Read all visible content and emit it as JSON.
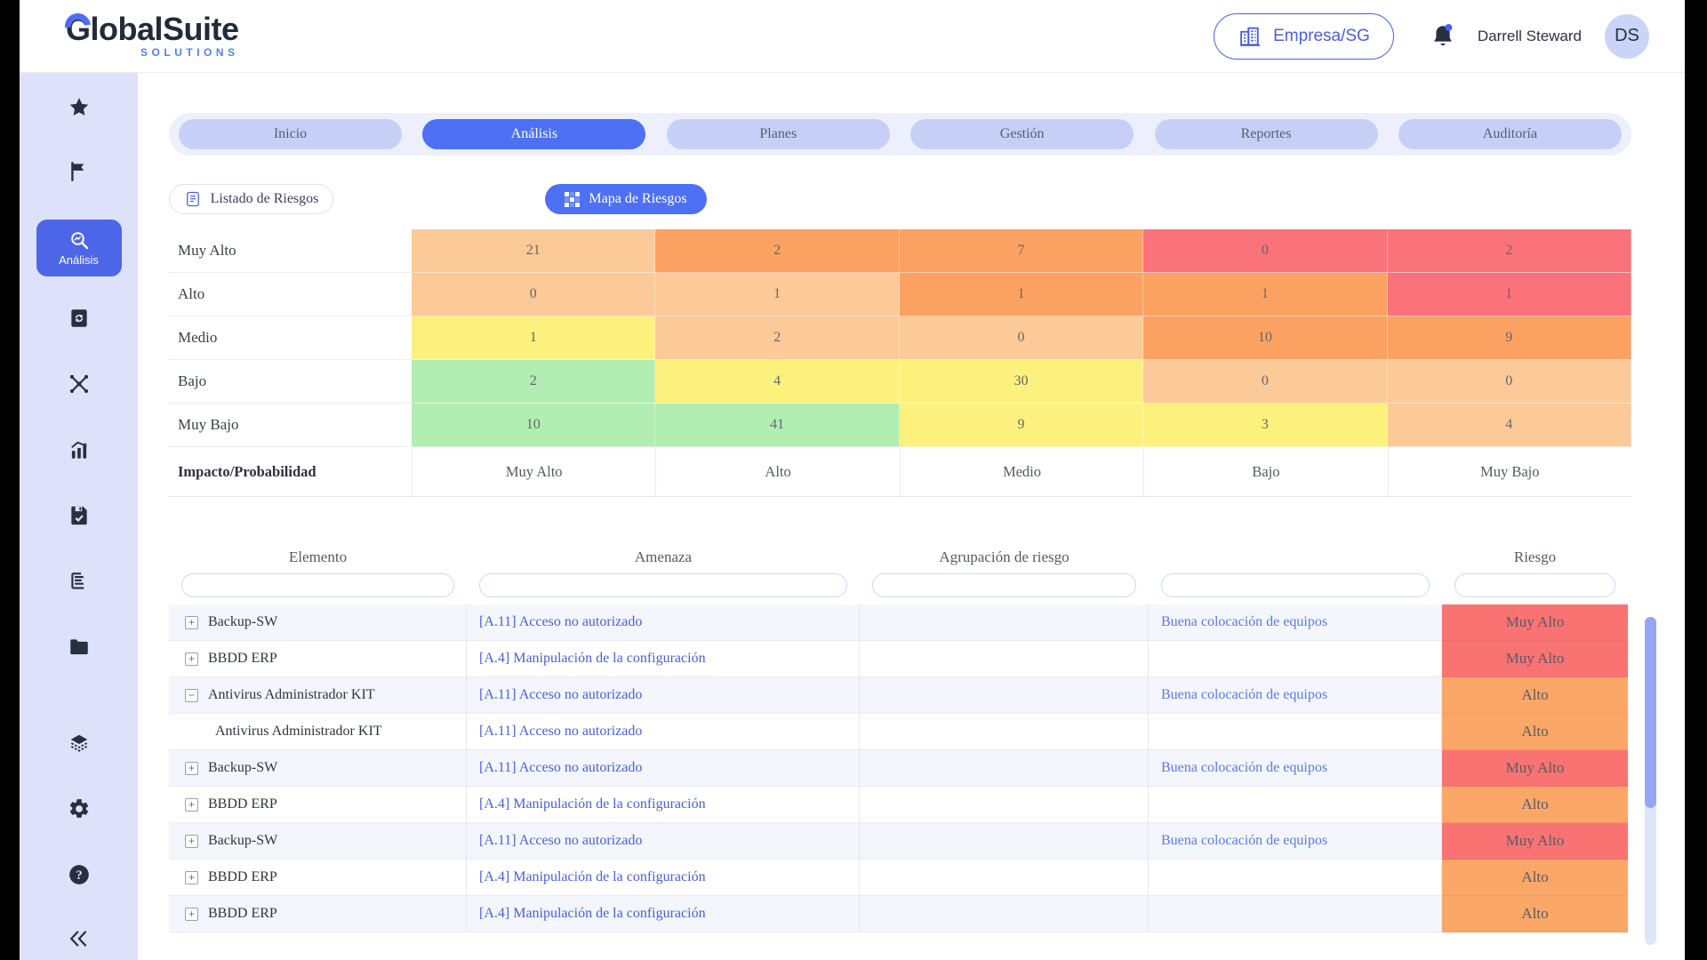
{
  "header": {
    "logo": {
      "brand": "GlobalSuite",
      "sub": "SOLUTIONS"
    },
    "company_button": {
      "label": "Empresa/SG"
    },
    "user": {
      "name": "Darrell Steward",
      "initials": "DS"
    }
  },
  "sidebar": {
    "active_label": "Análisis",
    "items": [
      "favorites",
      "flag",
      "analysis",
      "book-sync",
      "network",
      "chart",
      "save",
      "report",
      "folder",
      "layers",
      "settings",
      "help",
      "collapse"
    ]
  },
  "tabs": {
    "items": [
      {
        "label": "Inicio",
        "active": false
      },
      {
        "label": "Análisis",
        "active": true
      },
      {
        "label": "Planes",
        "active": false
      },
      {
        "label": "Gestión",
        "active": false
      },
      {
        "label": "Reportes",
        "active": false
      },
      {
        "label": "Auditoría",
        "active": false
      }
    ]
  },
  "subnav": {
    "listado_label": "Listado de Riesgos",
    "mapa_label": "Mapa de Riesgos"
  },
  "chart_data": {
    "type": "heatmap",
    "title": "Mapa de Riesgos",
    "corner_label": "Impacto/Probabilidad",
    "row_axis": "Impacto",
    "col_axis": "Probabilidad",
    "rows": [
      "Muy Alto",
      "Alto",
      "Medio",
      "Bajo",
      "Muy Bajo"
    ],
    "cols": [
      "Muy Alto",
      "Alto",
      "Medio",
      "Bajo",
      "Muy Bajo"
    ],
    "values": [
      [
        21,
        2,
        7,
        0,
        2
      ],
      [
        0,
        1,
        1,
        1,
        1
      ],
      [
        1,
        2,
        0,
        10,
        9
      ],
      [
        2,
        4,
        30,
        0,
        0
      ],
      [
        10,
        41,
        9,
        3,
        4
      ]
    ],
    "cell_colors": [
      [
        "LO",
        "O",
        "O",
        "R",
        "R"
      ],
      [
        "LO",
        "LO",
        "O",
        "O",
        "R"
      ],
      [
        "Y",
        "LO",
        "LO",
        "O",
        "O"
      ],
      [
        "G",
        "Y",
        "Y",
        "LO",
        "LO"
      ],
      [
        "G",
        "G",
        "Y",
        "Y",
        "LO"
      ]
    ],
    "palette": {
      "R": "#fa737b",
      "O": "#fba263",
      "LO": "#fcc998",
      "Y": "#fdf17e",
      "G": "#b2edb2"
    }
  },
  "table": {
    "headers": {
      "element": "Elemento",
      "threat": "Amenaza",
      "grouping": "Agrupación de riesgo",
      "risk": "Riesgo"
    },
    "risk_palette": {
      "Muy Alto": "#fa7373",
      "Alto": "#fba768"
    },
    "rows": [
      {
        "expand": "plus",
        "child": false,
        "element": "Backup-SW",
        "threat": "[A.11] Acceso no autorizado",
        "grouping": "",
        "control": "Buena colocación de equipos",
        "risk": "Muy Alto"
      },
      {
        "expand": "plus",
        "child": false,
        "element": "BBDD ERP",
        "threat": "[A.4] Manipulación de la configuración",
        "grouping": "",
        "control": "",
        "risk": "Muy Alto"
      },
      {
        "expand": "minus",
        "child": false,
        "element": "Antivirus Administrador KIT",
        "threat": "[A.11] Acceso no autorizado",
        "grouping": "",
        "control": "Buena colocación de equipos",
        "risk": "Alto"
      },
      {
        "expand": "none",
        "child": true,
        "element": "Antivirus Administrador KIT",
        "threat": "[A.11] Acceso no autorizado",
        "grouping": "",
        "control": "",
        "risk": "Alto"
      },
      {
        "expand": "plus",
        "child": false,
        "element": "Backup-SW",
        "threat": "[A.11] Acceso no autorizado",
        "grouping": "",
        "control": "Buena colocación de equipos",
        "risk": "Muy Alto"
      },
      {
        "expand": "plus",
        "child": false,
        "element": "BBDD ERP",
        "threat": "[A.4] Manipulación de la configuración",
        "grouping": "",
        "control": "",
        "risk": "Alto"
      },
      {
        "expand": "plus",
        "child": false,
        "element": "Backup-SW",
        "threat": "[A.11] Acceso no autorizado",
        "grouping": "",
        "control": "Buena colocación de equipos",
        "risk": "Muy Alto"
      },
      {
        "expand": "plus",
        "child": false,
        "element": "BBDD ERP",
        "threat": "[A.4] Manipulación de la configuración",
        "grouping": "",
        "control": "",
        "risk": "Alto"
      },
      {
        "expand": "plus",
        "child": false,
        "element": "BBDD ERP",
        "threat": "[A.4] Manipulación de la configuración",
        "grouping": "",
        "control": "",
        "risk": "Alto"
      }
    ]
  }
}
